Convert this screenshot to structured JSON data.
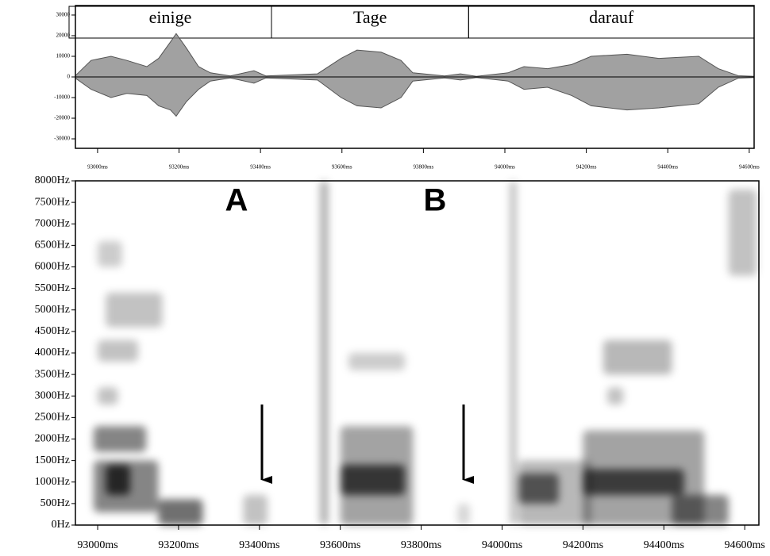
{
  "chart_data": [
    {
      "type": "area",
      "x": [
        92945,
        92984,
        93033,
        93072,
        93121,
        93150,
        93179,
        93193,
        93218,
        93248,
        93277,
        93326,
        93384,
        93413,
        93540,
        93598,
        93637,
        93696,
        93745,
        93774,
        93852,
        93891,
        93930,
        94008,
        94047,
        94105,
        94164,
        94212,
        94300,
        94378,
        94476,
        94524,
        94573,
        94612
      ],
      "series": [
        {
          "color": "#555555",
          "values": [
            500,
            8000,
            10000,
            8000,
            5000,
            9000,
            17000,
            21000,
            14000,
            5000,
            2000,
            500,
            3000,
            500,
            1500,
            9000,
            13000,
            12000,
            8000,
            2000,
            500,
            1500,
            300,
            2000,
            5000,
            4000,
            6000,
            10000,
            11000,
            9000,
            10000,
            4000,
            600,
            300
          ]
        },
        {
          "color": "#555555",
          "values": [
            -500,
            -6000,
            -10000,
            -8000,
            -9000,
            -14000,
            -16000,
            -19000,
            -12000,
            -6000,
            -2000,
            -500,
            -3000,
            -500,
            -1500,
            -10000,
            -14000,
            -15000,
            -10000,
            -2000,
            -500,
            -1500,
            -300,
            -2000,
            -6000,
            -5000,
            -9000,
            -14000,
            -16000,
            -15000,
            -13000,
            -5000,
            -600,
            -300
          ]
        }
      ],
      "intervals": [
        {
          "label": "einige",
          "start": 92930,
          "end": 93427
        },
        {
          "label": "Tage",
          "start": 93427,
          "end": 93911
        },
        {
          "label": "darauf",
          "start": 93911,
          "end": 94612
        }
      ],
      "xlim": [
        92930,
        94612
      ],
      "ylim": [
        -34600,
        34600
      ],
      "yticks": [
        -30000,
        -20000,
        -10000,
        0,
        10000,
        20000,
        30000
      ],
      "xticks": [
        {
          "value": 93000,
          "label": "93000ms"
        },
        {
          "value": 93200,
          "label": "93200ms"
        },
        {
          "value": 93400,
          "label": "93400ms"
        },
        {
          "value": 93600,
          "label": "93600ms"
        },
        {
          "value": 93800,
          "label": "93800ms"
        },
        {
          "value": 94000,
          "label": "94000ms"
        },
        {
          "value": 94200,
          "label": "94200ms"
        },
        {
          "value": 94400,
          "label": "94400ms"
        },
        {
          "value": 94600,
          "label": "94600ms"
        }
      ]
    },
    {
      "type": "heatmap",
      "cells": [
        {
          "x": [
            92990,
            93150
          ],
          "y": [
            300,
            1500
          ],
          "value": 0.6
        },
        {
          "x": [
            93020,
            93080
          ],
          "y": [
            700,
            1400
          ],
          "value": 0.9
        },
        {
          "x": [
            92990,
            93120
          ],
          "y": [
            1700,
            2300
          ],
          "value": 0.6
        },
        {
          "x": [
            93150,
            93260
          ],
          "y": [
            0,
            600
          ],
          "value": 0.7
        },
        {
          "x": [
            93000,
            93100
          ],
          "y": [
            3800,
            4300
          ],
          "value": 0.3
        },
        {
          "x": [
            93020,
            93160
          ],
          "y": [
            4600,
            5400
          ],
          "value": 0.3
        },
        {
          "x": [
            93000,
            93060
          ],
          "y": [
            6000,
            6600
          ],
          "value": 0.25
        },
        {
          "x": [
            93000,
            93050
          ],
          "y": [
            2800,
            3200
          ],
          "value": 0.3
        },
        {
          "x": [
            93360,
            93420
          ],
          "y": [
            0,
            700
          ],
          "value": 0.3
        },
        {
          "x": [
            93550,
            93570
          ],
          "y": [
            0,
            8000
          ],
          "value": 0.4
        },
        {
          "x": [
            93600,
            93780
          ],
          "y": [
            0,
            2300
          ],
          "value": 0.45
        },
        {
          "x": [
            93600,
            93760
          ],
          "y": [
            700,
            1400
          ],
          "value": 0.85
        },
        {
          "x": [
            93620,
            93760
          ],
          "y": [
            3600,
            4000
          ],
          "value": 0.25
        },
        {
          "x": [
            93890,
            93920
          ],
          "y": [
            0,
            500
          ],
          "value": 0.2
        },
        {
          "x": [
            94020,
            94035
          ],
          "y": [
            0,
            8000
          ],
          "value": 0.35
        },
        {
          "x": [
            94040,
            94220
          ],
          "y": [
            0,
            1500
          ],
          "value": 0.35
        },
        {
          "x": [
            94040,
            94140
          ],
          "y": [
            500,
            1200
          ],
          "value": 0.7
        },
        {
          "x": [
            94200,
            94500
          ],
          "y": [
            0,
            2200
          ],
          "value": 0.45
        },
        {
          "x": [
            94200,
            94450
          ],
          "y": [
            700,
            1300
          ],
          "value": 0.8
        },
        {
          "x": [
            94420,
            94560
          ],
          "y": [
            0,
            700
          ],
          "value": 0.6
        },
        {
          "x": [
            94250,
            94420
          ],
          "y": [
            3500,
            4300
          ],
          "value": 0.35
        },
        {
          "x": [
            94260,
            94300
          ],
          "y": [
            2800,
            3200
          ],
          "value": 0.3
        },
        {
          "x": [
            94560,
            94630
          ],
          "y": [
            5800,
            7800
          ],
          "value": 0.3
        }
      ],
      "annotations": [
        "A",
        "B"
      ],
      "xlim": [
        92945,
        94635
      ],
      "ylim": [
        0,
        8000
      ],
      "yticks": [
        {
          "value": 0,
          "label": "0Hz"
        },
        {
          "value": 500,
          "label": "500Hz"
        },
        {
          "value": 1000,
          "label": "1000Hz"
        },
        {
          "value": 1500,
          "label": "1500Hz"
        },
        {
          "value": 2000,
          "label": "2000Hz"
        },
        {
          "value": 2500,
          "label": "2500Hz"
        },
        {
          "value": 3000,
          "label": "3000Hz"
        },
        {
          "value": 3500,
          "label": "3500Hz"
        },
        {
          "value": 4000,
          "label": "4000Hz"
        },
        {
          "value": 4500,
          "label": "4500Hz"
        },
        {
          "value": 5000,
          "label": "5000Hz"
        },
        {
          "value": 5500,
          "label": "5500Hz"
        },
        {
          "value": 6000,
          "label": "6000Hz"
        },
        {
          "value": 6500,
          "label": "6500Hz"
        },
        {
          "value": 7000,
          "label": "7000Hz"
        },
        {
          "value": 7500,
          "label": "7500Hz"
        },
        {
          "value": 8000,
          "label": "8000Hz"
        }
      ],
      "xticks": [
        {
          "value": 93000,
          "label": "93000ms"
        },
        {
          "value": 93200,
          "label": "93200ms"
        },
        {
          "value": 93400,
          "label": "93400ms"
        },
        {
          "value": 93600,
          "label": "93600ms"
        },
        {
          "value": 93800,
          "label": "93800ms"
        },
        {
          "value": 94000,
          "label": "94000ms"
        },
        {
          "value": 94200,
          "label": "94200ms"
        },
        {
          "value": 94400,
          "label": "94400ms"
        },
        {
          "value": 94600,
          "label": "94600ms"
        }
      ]
    }
  ]
}
